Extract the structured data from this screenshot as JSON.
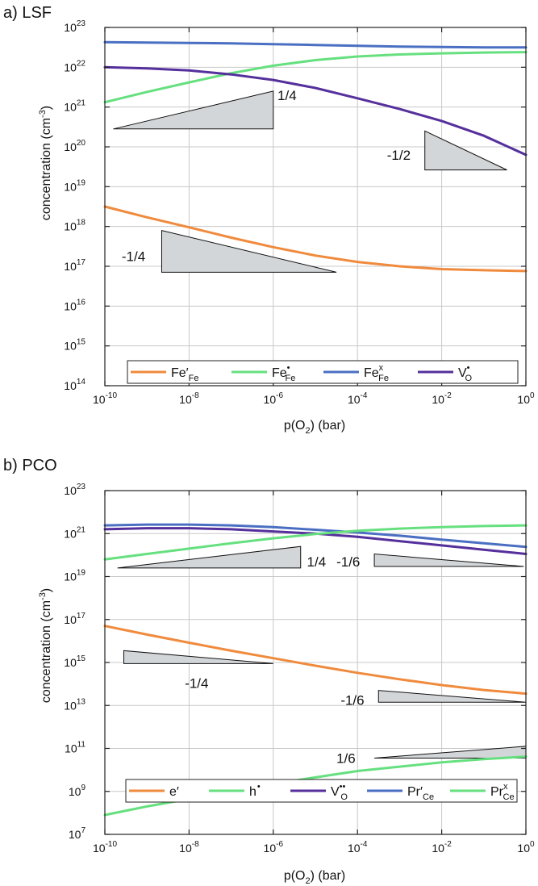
{
  "colors": {
    "orange": "#f08a3c",
    "green": "#66e07f",
    "blue": "#4a6fc2",
    "purple": "#55309c"
  },
  "chart_data": [
    {
      "type": "line",
      "title": "a) LSF",
      "xlabel_main": "p(O",
      "xlabel_sub": "2",
      "xlabel_end": ") (bar)",
      "ylabel_main": "concentration (cm",
      "ylabel_sup": "-3",
      "ylabel_end": ")",
      "xlim": [
        -10,
        0
      ],
      "ylim": [
        14,
        23
      ],
      "xticks": [
        {
          "base": "10",
          "exp": "-10",
          "v": -10
        },
        {
          "base": "10",
          "exp": "-8",
          "v": -8
        },
        {
          "base": "10",
          "exp": "-6",
          "v": -6
        },
        {
          "base": "10",
          "exp": "-4",
          "v": -4
        },
        {
          "base": "10",
          "exp": "-2",
          "v": -2
        },
        {
          "base": "10",
          "exp": "0",
          "v": 0
        }
      ],
      "yticks": [
        {
          "base": "10",
          "exp": "23",
          "v": 23
        },
        {
          "base": "10",
          "exp": "22",
          "v": 22
        },
        {
          "base": "10",
          "exp": "21",
          "v": 21
        },
        {
          "base": "10",
          "exp": "20",
          "v": 20
        },
        {
          "base": "10",
          "exp": "19",
          "v": 19
        },
        {
          "base": "10",
          "exp": "18",
          "v": 18
        },
        {
          "base": "10",
          "exp": "17",
          "v": 17
        },
        {
          "base": "10",
          "exp": "16",
          "v": 16
        },
        {
          "base": "10",
          "exp": "15",
          "v": 15
        },
        {
          "base": "10",
          "exp": "14",
          "v": 14
        }
      ],
      "series": [
        {
          "key": "fe_fe_prime",
          "name": "Fe′",
          "sub": "Fe",
          "sup": "",
          "color": "orange",
          "x": [
            -10,
            -9,
            -8,
            -7,
            -6,
            -5,
            -4,
            -3,
            -2,
            -1,
            0
          ],
          "y": [
            18.5,
            18.23,
            17.98,
            17.72,
            17.48,
            17.27,
            17.11,
            17.0,
            16.93,
            16.9,
            16.88
          ]
        },
        {
          "key": "fe_fe_dot",
          "name": "Fe",
          "sub": "Fe",
          "sup": "•",
          "color": "green",
          "x": [
            -10,
            -9,
            -8,
            -7,
            -6,
            -5,
            -4,
            -3,
            -2,
            -1,
            0
          ],
          "y": [
            21.12,
            21.38,
            21.62,
            21.85,
            22.04,
            22.18,
            22.27,
            22.32,
            22.35,
            22.37,
            22.38
          ]
        },
        {
          "key": "fe_fe_x",
          "name": "Fe",
          "sub": "Fe",
          "sup": "x",
          "color": "blue",
          "x": [
            -10,
            -9,
            -8,
            -7,
            -6,
            -5,
            -4,
            -3,
            -2,
            -1,
            0
          ],
          "y": [
            22.63,
            22.62,
            22.61,
            22.6,
            22.58,
            22.56,
            22.54,
            22.52,
            22.51,
            22.5,
            22.5
          ]
        },
        {
          "key": "v_o_dot",
          "name": "V",
          "sub": "O",
          "sup": "•",
          "color": "purple",
          "x": [
            -10,
            -9,
            -8,
            -7,
            -6,
            -5,
            -4,
            -3,
            -2,
            -1,
            0
          ],
          "y": [
            22.0,
            21.97,
            21.92,
            21.82,
            21.68,
            21.48,
            21.22,
            20.95,
            20.65,
            20.28,
            19.8
          ]
        }
      ],
      "slopes": [
        {
          "label": "1/4",
          "x0": -9.8,
          "x1": -6.0,
          "y0": 20.45,
          "y1": 21.4,
          "right_angle": "right",
          "label_x": -5.9,
          "label_y": 21.3
        },
        {
          "label": "-1/2",
          "x0": -2.4,
          "x1": -0.45,
          "y0": 20.4,
          "y1": 19.42,
          "right_angle": "left",
          "label_x": -3.3,
          "label_y": 19.8
        },
        {
          "label": "-1/4",
          "x0": -8.65,
          "x1": -4.5,
          "y0": 17.9,
          "y1": 16.85,
          "right_angle": "left",
          "label_x": -9.6,
          "label_y": 17.25
        }
      ]
    },
    {
      "type": "line",
      "title": "b) PCO",
      "xlabel_main": "p(O",
      "xlabel_sub": "2",
      "xlabel_end": ") (bar)",
      "ylabel_main": "concentration (cm",
      "ylabel_sup": "-3",
      "ylabel_end": ")",
      "xlim": [
        -10,
        0
      ],
      "ylim": [
        7,
        23
      ],
      "xticks": [
        {
          "base": "10",
          "exp": "-10",
          "v": -10
        },
        {
          "base": "10",
          "exp": "-8",
          "v": -8
        },
        {
          "base": "10",
          "exp": "-6",
          "v": -6
        },
        {
          "base": "10",
          "exp": "-4",
          "v": -4
        },
        {
          "base": "10",
          "exp": "-2",
          "v": -2
        },
        {
          "base": "10",
          "exp": "0",
          "v": 0
        }
      ],
      "yticks": [
        {
          "base": "10",
          "exp": "23",
          "v": 23
        },
        {
          "base": "10",
          "exp": "21",
          "v": 21
        },
        {
          "base": "10",
          "exp": "19",
          "v": 19
        },
        {
          "base": "10",
          "exp": "17",
          "v": 17
        },
        {
          "base": "10",
          "exp": "15",
          "v": 15
        },
        {
          "base": "10",
          "exp": "13",
          "v": 13
        },
        {
          "base": "10",
          "exp": "11",
          "v": 11
        },
        {
          "base": "10",
          "exp": "9",
          "v": 9
        },
        {
          "base": "10",
          "exp": "7",
          "v": 7
        }
      ],
      "series": [
        {
          "key": "e_prime",
          "name": "e′",
          "sub": "",
          "sup": "",
          "color": "orange",
          "x": [
            -10,
            -9,
            -8,
            -7,
            -6,
            -5,
            -4,
            -3,
            -2,
            -1,
            0
          ],
          "y": [
            16.7,
            16.3,
            15.92,
            15.55,
            15.2,
            14.85,
            14.52,
            14.22,
            13.95,
            13.72,
            13.55
          ]
        },
        {
          "key": "h_dot",
          "name": "h",
          "sub": "",
          "sup": "•",
          "color": "green",
          "x": [
            -10,
            -9,
            -8,
            -7,
            -6,
            -5,
            -4,
            -3,
            -2,
            -1,
            0
          ],
          "y": [
            7.9,
            8.3,
            8.65,
            9.0,
            9.35,
            9.65,
            9.95,
            10.15,
            10.35,
            10.5,
            10.62
          ]
        },
        {
          "key": "v_o_dotdot",
          "name": "V",
          "sub": "O",
          "sup": "••",
          "color": "purple",
          "x": [
            -10,
            -9,
            -8,
            -7,
            -6,
            -5,
            -4,
            -3,
            -2,
            -1,
            0
          ],
          "y": [
            21.2,
            21.25,
            21.25,
            21.2,
            21.1,
            21.0,
            20.85,
            20.65,
            20.45,
            20.25,
            20.05
          ]
        },
        {
          "key": "pr_ce_prime",
          "name": "Pr′",
          "sub": "Ce",
          "sup": "",
          "color": "blue",
          "x": [
            -10,
            -9,
            -8,
            -7,
            -6,
            -5,
            -4,
            -3,
            -2,
            -1,
            0
          ],
          "y": [
            21.38,
            21.42,
            21.42,
            21.38,
            21.3,
            21.18,
            21.05,
            20.9,
            20.72,
            20.55,
            20.38
          ]
        },
        {
          "key": "pr_ce_x",
          "name": "Pr",
          "sub": "Ce",
          "sup": "x",
          "color": "green",
          "x": [
            -10,
            -9,
            -8,
            -7,
            -6,
            -5,
            -4,
            -3,
            -2,
            -1,
            0
          ],
          "y": [
            19.8,
            20.05,
            20.3,
            20.55,
            20.78,
            20.98,
            21.13,
            21.23,
            21.3,
            21.35,
            21.38
          ]
        }
      ],
      "slopes": [
        {
          "label": "1/4",
          "x0": -9.7,
          "x1": -5.35,
          "y0": 19.4,
          "y1": 20.4,
          "right_angle": "right",
          "label_x": -5.2,
          "label_y": 19.7
        },
        {
          "label": "-1/6",
          "x0": -3.6,
          "x1": -0.05,
          "y0": 20.05,
          "y1": 19.47,
          "right_angle": "left",
          "label_x": -4.5,
          "label_y": 19.7
        },
        {
          "label": "-1/4",
          "x0": -9.55,
          "x1": -6.0,
          "y0": 15.55,
          "y1": 14.95,
          "right_angle": "left",
          "label_x": -8.1,
          "label_y": 14.05
        },
        {
          "label": "-1/6",
          "x0": -3.5,
          "x1": 0.0,
          "y0": 13.7,
          "y1": 13.15,
          "right_angle": "left",
          "label_x": -4.4,
          "label_y": 13.25
        },
        {
          "label": "1/6",
          "x0": -3.6,
          "x1": 0.0,
          "y0": 10.55,
          "y1": 11.1,
          "right_angle": "right",
          "label_x": -4.5,
          "label_y": 10.55
        }
      ]
    }
  ]
}
